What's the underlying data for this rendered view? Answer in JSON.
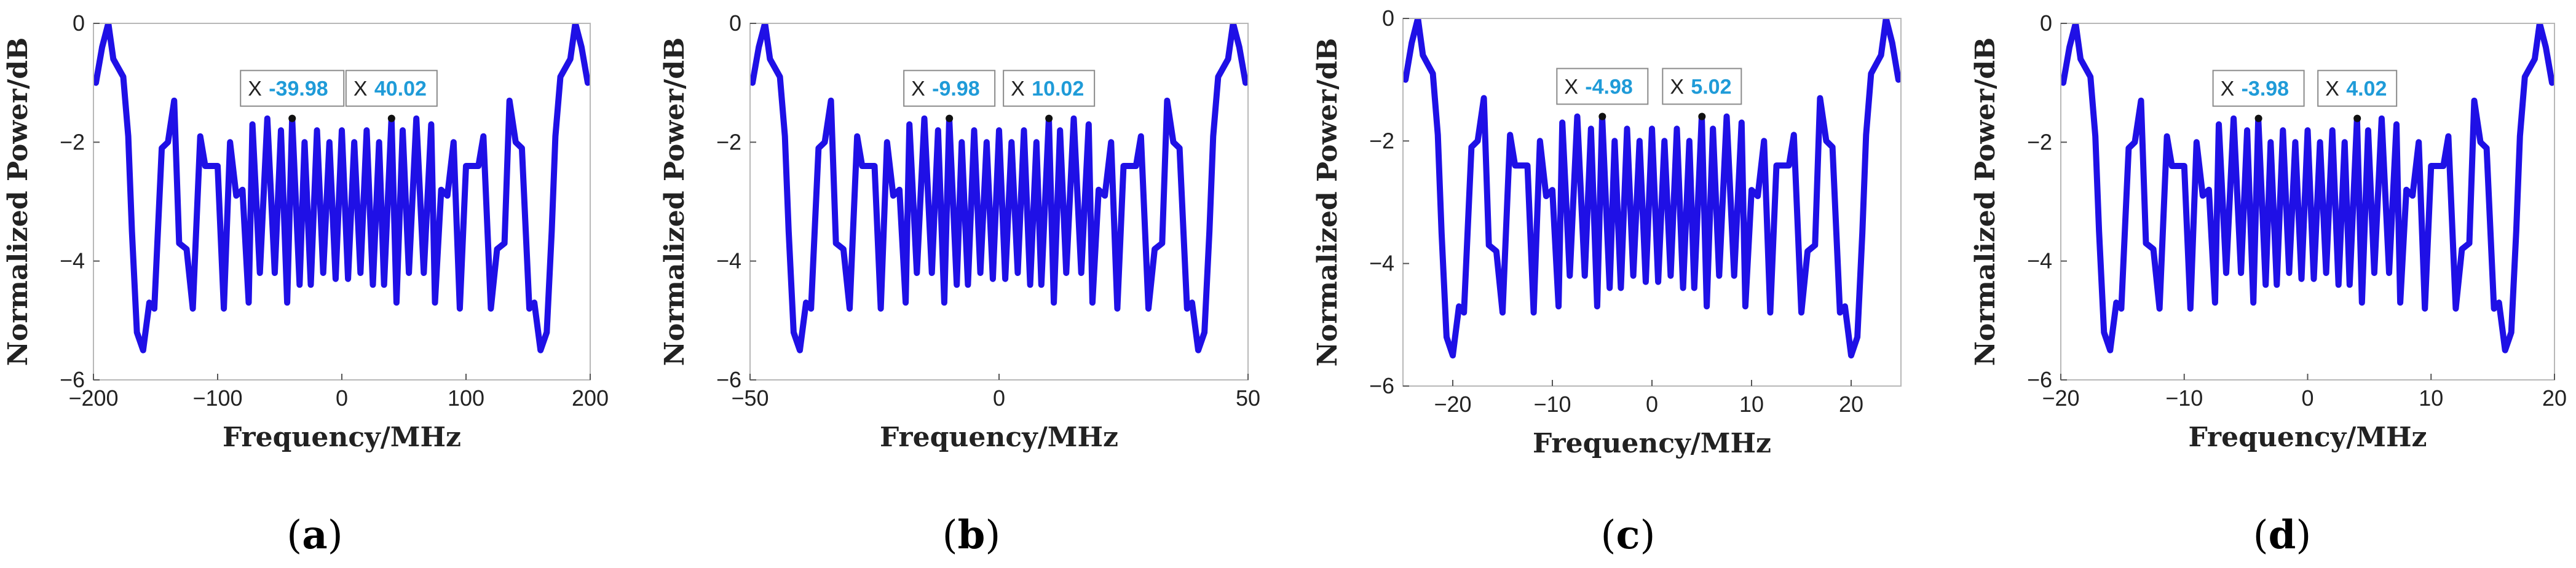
{
  "chart_data": [
    {
      "panel": "a",
      "caption": "a",
      "type": "line",
      "xlabel": "Frequency/MHz",
      "ylabel": "Normalized Power/dB",
      "xlim": [
        -200,
        200
      ],
      "ylim": [
        -6,
        0
      ],
      "xticks": [
        -200,
        -100,
        0,
        100,
        200
      ],
      "yticks": [
        0,
        -2,
        -4,
        -6
      ],
      "tick_labels_x": [
        "−200",
        "−100",
        "0",
        "100",
        "200"
      ],
      "tick_labels_y": [
        "0",
        "−2",
        "−4",
        "−6"
      ],
      "legend": "none",
      "series": [
        {
          "name": "spectrum",
          "color": "#1f10e6",
          "x": [
            -202,
            -198,
            -193,
            -188,
            -184,
            -176,
            -172,
            -169,
            -165,
            -160,
            -155,
            -151,
            -145,
            -140,
            -135,
            -131,
            -125,
            -120,
            -114,
            -110,
            -106,
            -100,
            -95,
            -90,
            -85,
            -80,
            -75,
            -72,
            -66,
            -60,
            -54,
            -49,
            -44,
            -40,
            -34,
            -30,
            -25,
            -20,
            -15,
            -10,
            -5,
            0,
            5,
            10,
            15,
            20,
            25,
            30,
            34,
            40,
            44,
            49,
            54,
            60,
            66,
            72,
            75,
            80,
            85,
            90,
            95,
            100,
            106,
            110,
            114,
            120,
            125,
            131,
            135,
            140,
            145,
            151,
            155,
            160,
            165,
            169,
            172,
            176,
            184,
            188,
            193,
            198,
            202
          ],
          "y": [
            -0.9,
            -1.0,
            -0.4,
            0.0,
            -0.6,
            -0.9,
            -1.9,
            -3.5,
            -5.2,
            -5.5,
            -4.7,
            -4.8,
            -2.1,
            -2.0,
            -1.3,
            -3.7,
            -3.8,
            -4.8,
            -1.9,
            -2.4,
            -2.4,
            -2.4,
            -4.8,
            -2.0,
            -2.9,
            -2.8,
            -4.7,
            -1.7,
            -4.2,
            -1.6,
            -4.2,
            -1.8,
            -4.7,
            -1.6,
            -4.4,
            -2.0,
            -4.4,
            -1.8,
            -4.2,
            -2.0,
            -4.3,
            -1.8,
            -4.3,
            -2.0,
            -4.2,
            -1.8,
            -4.4,
            -2.0,
            -4.4,
            -1.6,
            -4.7,
            -1.8,
            -4.2,
            -1.6,
            -4.2,
            -1.7,
            -4.7,
            -2.8,
            -2.9,
            -2.0,
            -4.8,
            -2.4,
            -2.4,
            -2.4,
            -1.9,
            -4.8,
            -3.8,
            -3.7,
            -1.3,
            -2.0,
            -2.1,
            -4.8,
            -4.7,
            -5.5,
            -5.2,
            -3.5,
            -1.9,
            -0.9,
            -0.6,
            0.0,
            -0.4,
            -1.0,
            -0.9
          ]
        }
      ],
      "datatips": [
        {
          "label": "X",
          "value": "-39.98",
          "x": -39.98,
          "y": -1.6
        },
        {
          "label": "X",
          "value": "40.02",
          "x": 40.02,
          "y": -1.6
        }
      ]
    },
    {
      "panel": "b",
      "caption": "b",
      "type": "line",
      "xlabel": "Frequency/MHz",
      "ylabel": "Normalized Power/dB",
      "xlim": [
        -50,
        50
      ],
      "ylim": [
        -6,
        0
      ],
      "xticks": [
        -50,
        0,
        50
      ],
      "yticks": [
        0,
        -2,
        -4,
        -6
      ],
      "tick_labels_x": [
        "−50",
        "0",
        "50"
      ],
      "tick_labels_y": [
        "0",
        "−2",
        "−4",
        "−6"
      ],
      "legend": "none",
      "series": [
        {
          "name": "spectrum",
          "color": "#1f10e6",
          "x": [
            -50.5,
            -49.5,
            -48.25,
            -47,
            -46,
            -44,
            -43,
            -42.25,
            -41.25,
            -40,
            -38.75,
            -37.75,
            -36.25,
            -35,
            -33.75,
            -32.75,
            -31.25,
            -30,
            -28.5,
            -27.5,
            -26.5,
            -25,
            -23.75,
            -22.5,
            -21.25,
            -20,
            -18.75,
            -18,
            -16.5,
            -15,
            -13.5,
            -12.25,
            -11,
            -10,
            -8.5,
            -7.5,
            -6.25,
            -5,
            -3.75,
            -2.5,
            -1.25,
            0,
            1.25,
            2.5,
            3.75,
            5,
            6.25,
            7.5,
            8.5,
            10,
            11,
            12.25,
            13.5,
            15,
            16.5,
            18,
            18.75,
            20,
            21.25,
            22.5,
            23.75,
            25,
            26.5,
            27.5,
            28.5,
            30,
            31.25,
            32.75,
            33.75,
            35,
            36.25,
            37.75,
            38.75,
            40,
            41.25,
            42.25,
            43,
            44,
            46,
            47,
            48.25,
            49.5,
            50.5
          ],
          "y": [
            -0.9,
            -1.0,
            -0.4,
            0.0,
            -0.6,
            -0.9,
            -1.9,
            -3.5,
            -5.2,
            -5.5,
            -4.7,
            -4.8,
            -2.1,
            -2.0,
            -1.3,
            -3.7,
            -3.8,
            -4.8,
            -1.9,
            -2.4,
            -2.4,
            -2.4,
            -4.8,
            -2.0,
            -2.9,
            -2.8,
            -4.7,
            -1.7,
            -4.2,
            -1.6,
            -4.2,
            -1.8,
            -4.7,
            -1.6,
            -4.4,
            -2.0,
            -4.4,
            -1.8,
            -4.2,
            -2.0,
            -4.3,
            -1.8,
            -4.3,
            -2.0,
            -4.2,
            -1.8,
            -4.4,
            -2.0,
            -4.4,
            -1.6,
            -4.7,
            -1.8,
            -4.2,
            -1.6,
            -4.2,
            -1.7,
            -4.7,
            -2.8,
            -2.9,
            -2.0,
            -4.8,
            -2.4,
            -2.4,
            -2.4,
            -1.9,
            -4.8,
            -3.8,
            -3.7,
            -1.3,
            -2.0,
            -2.1,
            -4.8,
            -4.7,
            -5.5,
            -5.2,
            -3.5,
            -1.9,
            -0.9,
            -0.6,
            0.0,
            -0.4,
            -1.0,
            -0.9
          ]
        }
      ],
      "datatips": [
        {
          "label": "X",
          "value": "-9.98",
          "x": -9.98,
          "y": -1.6
        },
        {
          "label": "X",
          "value": "10.02",
          "x": 10.02,
          "y": -1.6
        }
      ]
    },
    {
      "panel": "c",
      "caption": "c",
      "type": "line",
      "xlabel": "Frequency/MHz",
      "ylabel": "Normalized Power/dB",
      "xlim": [
        -25,
        25
      ],
      "ylim": [
        -6,
        0
      ],
      "xticks": [
        -20,
        -10,
        0,
        10,
        20
      ],
      "yticks": [
        0,
        -2,
        -4,
        -6
      ],
      "tick_labels_x": [
        "−20",
        "−10",
        "0",
        "10",
        "20"
      ],
      "tick_labels_y": [
        "0",
        "−2",
        "−4",
        "−6"
      ],
      "legend": "none",
      "series": [
        {
          "name": "spectrum",
          "color": "#1f10e6",
          "x": [
            -25.25,
            -24.75,
            -24.125,
            -23.5,
            -23,
            -22,
            -21.5,
            -21.125,
            -20.625,
            -20,
            -19.375,
            -18.875,
            -18.125,
            -17.5,
            -16.875,
            -16.375,
            -15.625,
            -15,
            -14.25,
            -13.75,
            -13.25,
            -12.5,
            -11.875,
            -11.25,
            -10.625,
            -10,
            -9.375,
            -9,
            -8.25,
            -7.5,
            -6.75,
            -6.125,
            -5.5,
            -5,
            -4.25,
            -3.75,
            -3.125,
            -2.5,
            -1.875,
            -1.25,
            -0.625,
            0,
            0.625,
            1.25,
            1.875,
            2.5,
            3.125,
            3.75,
            4.25,
            5,
            5.5,
            6.125,
            6.75,
            7.5,
            8.25,
            9,
            9.375,
            10,
            10.625,
            11.25,
            11.875,
            12.5,
            13.25,
            13.75,
            14.25,
            15,
            15.625,
            16.375,
            16.875,
            17.5,
            18.125,
            18.875,
            19.375,
            20,
            20.625,
            21.125,
            21.5,
            22,
            23,
            23.5,
            24.125,
            24.75,
            25.25
          ],
          "y": [
            -0.9,
            -1.0,
            -0.4,
            0.0,
            -0.6,
            -0.9,
            -1.9,
            -3.5,
            -5.2,
            -5.5,
            -4.7,
            -4.8,
            -2.1,
            -2.0,
            -1.3,
            -3.7,
            -3.8,
            -4.8,
            -1.9,
            -2.4,
            -2.4,
            -2.4,
            -4.8,
            -2.0,
            -2.9,
            -2.8,
            -4.7,
            -1.7,
            -4.2,
            -1.6,
            -4.2,
            -1.8,
            -4.7,
            -1.6,
            -4.4,
            -2.0,
            -4.4,
            -1.8,
            -4.2,
            -2.0,
            -4.3,
            -1.8,
            -4.3,
            -2.0,
            -4.2,
            -1.8,
            -4.4,
            -2.0,
            -4.4,
            -1.6,
            -4.7,
            -1.8,
            -4.2,
            -1.6,
            -4.2,
            -1.7,
            -4.7,
            -2.8,
            -2.9,
            -2.0,
            -4.8,
            -2.4,
            -2.4,
            -2.4,
            -1.9,
            -4.8,
            -3.8,
            -3.7,
            -1.3,
            -2.0,
            -2.1,
            -4.8,
            -4.7,
            -5.5,
            -5.2,
            -3.5,
            -1.9,
            -0.9,
            -0.6,
            0.0,
            -0.4,
            -1.0,
            -0.9
          ]
        }
      ],
      "datatips": [
        {
          "label": "X",
          "value": "-4.98",
          "x": -4.98,
          "y": -1.6
        },
        {
          "label": "X",
          "value": "5.02",
          "x": 5.02,
          "y": -1.6
        }
      ]
    },
    {
      "panel": "d",
      "caption": "d",
      "type": "line",
      "xlabel": "Frequency/MHz",
      "ylabel": "Normalized Power/dB",
      "xlim": [
        -20,
        20
      ],
      "ylim": [
        -6,
        0
      ],
      "xticks": [
        -20,
        -10,
        0,
        10,
        20
      ],
      "yticks": [
        0,
        -2,
        -4,
        -6
      ],
      "tick_labels_x": [
        "−20",
        "−10",
        "0",
        "10",
        "20"
      ],
      "tick_labels_y": [
        "0",
        "−2",
        "−4",
        "−6"
      ],
      "legend": "none",
      "series": [
        {
          "name": "spectrum",
          "color": "#1f10e6",
          "x": [
            -20.2,
            -19.8,
            -19.3,
            -18.8,
            -18.4,
            -17.6,
            -17.2,
            -16.9,
            -16.5,
            -16,
            -15.5,
            -15.1,
            -14.5,
            -14,
            -13.5,
            -13.1,
            -12.5,
            -12,
            -11.4,
            -11,
            -10.6,
            -10,
            -9.5,
            -9,
            -8.5,
            -8,
            -7.5,
            -7.2,
            -6.6,
            -6,
            -5.4,
            -4.9,
            -4.4,
            -4,
            -3.4,
            -3,
            -2.5,
            -2,
            -1.5,
            -1,
            -0.5,
            0,
            0.5,
            1,
            1.5,
            2,
            2.5,
            3,
            3.4,
            4,
            4.4,
            4.9,
            5.4,
            6,
            6.6,
            7.2,
            7.5,
            8,
            8.5,
            9,
            9.5,
            10,
            10.6,
            11,
            11.4,
            12,
            12.5,
            13.1,
            13.5,
            14,
            14.5,
            15.1,
            15.5,
            16,
            16.5,
            16.9,
            17.2,
            17.6,
            18.4,
            18.8,
            19.3,
            19.8,
            20.2
          ],
          "y": [
            -0.9,
            -1.0,
            -0.4,
            0.0,
            -0.6,
            -0.9,
            -1.9,
            -3.5,
            -5.2,
            -5.5,
            -4.7,
            -4.8,
            -2.1,
            -2.0,
            -1.3,
            -3.7,
            -3.8,
            -4.8,
            -1.9,
            -2.4,
            -2.4,
            -2.4,
            -4.8,
            -2.0,
            -2.9,
            -2.8,
            -4.7,
            -1.7,
            -4.2,
            -1.6,
            -4.2,
            -1.8,
            -4.7,
            -1.6,
            -4.4,
            -2.0,
            -4.4,
            -1.8,
            -4.2,
            -2.0,
            -4.3,
            -1.8,
            -4.3,
            -2.0,
            -4.2,
            -1.8,
            -4.4,
            -2.0,
            -4.4,
            -1.6,
            -4.7,
            -1.8,
            -4.2,
            -1.6,
            -4.2,
            -1.7,
            -4.7,
            -2.8,
            -2.9,
            -2.0,
            -4.8,
            -2.4,
            -2.4,
            -2.4,
            -1.9,
            -4.8,
            -3.8,
            -3.7,
            -1.3,
            -2.0,
            -2.1,
            -4.8,
            -4.7,
            -5.5,
            -5.2,
            -3.5,
            -1.9,
            -0.9,
            -0.6,
            0.0,
            -0.4,
            -1.0,
            -0.9
          ]
        }
      ],
      "datatips": [
        {
          "label": "X",
          "value": "-3.98",
          "x": -3.98,
          "y": -1.6
        },
        {
          "label": "X",
          "value": "4.02",
          "x": 4.02,
          "y": -1.6
        }
      ]
    }
  ]
}
